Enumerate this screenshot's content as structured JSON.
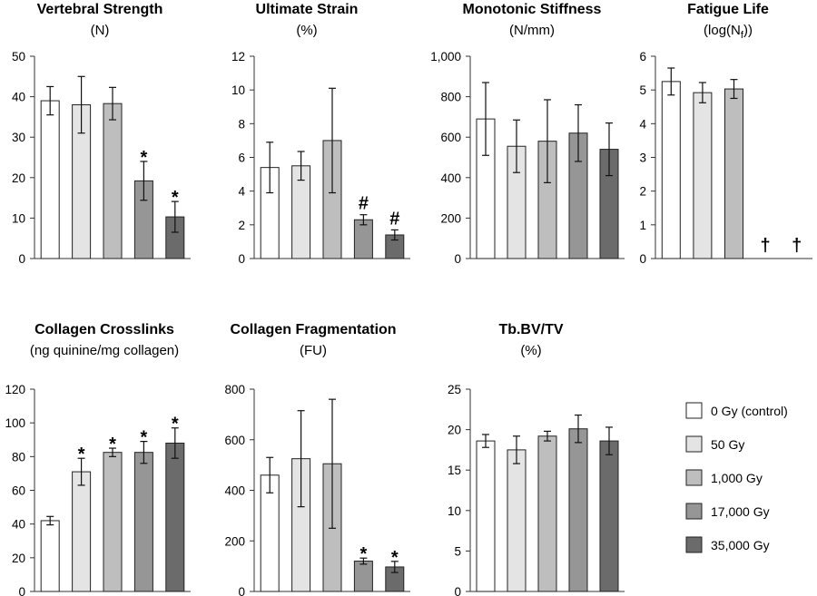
{
  "legend": {
    "items": [
      {
        "label": "0 Gy (control)",
        "color": "#ffffff"
      },
      {
        "label": "50 Gy",
        "color": "#e4e4e4"
      },
      {
        "label": "1,000 Gy",
        "color": "#bebebe"
      },
      {
        "label": "17,000 Gy",
        "color": "#969696"
      },
      {
        "label": "35,000 Gy",
        "color": "#6b6b6b"
      }
    ]
  },
  "chart_data": [
    {
      "type": "bar",
      "title": "Vertebral Strength",
      "unit": "(N)",
      "ylim": [
        0,
        50
      ],
      "yticks": [
        "0",
        "10",
        "20",
        "30",
        "40",
        "50"
      ],
      "categories": [
        "0 Gy (control)",
        "50 Gy",
        "1,000 Gy",
        "17,000 Gy",
        "35,000 Gy"
      ],
      "values": [
        39,
        38,
        38.3,
        19.2,
        10.3
      ],
      "errors": [
        3.5,
        7,
        4,
        4.8,
        3.8
      ],
      "marks": [
        "",
        "",
        "",
        "*",
        "*"
      ]
    },
    {
      "type": "bar",
      "title": "Ultimate Strain",
      "unit": "(%)",
      "ylim": [
        0,
        12
      ],
      "yticks": [
        "0",
        "2",
        "4",
        "6",
        "8",
        "10",
        "12"
      ],
      "categories": [
        "0 Gy (control)",
        "50 Gy",
        "1,000 Gy",
        "17,000 Gy",
        "35,000 Gy"
      ],
      "values": [
        5.4,
        5.5,
        7.0,
        2.3,
        1.4
      ],
      "errors": [
        1.5,
        0.85,
        3.1,
        0.3,
        0.3
      ],
      "marks": [
        "",
        "",
        "",
        "#",
        "#"
      ]
    },
    {
      "type": "bar",
      "title": "Monotonic Stiffness",
      "unit": "(N/mm)",
      "ylim": [
        0,
        1000
      ],
      "yticks": [
        "0",
        "200",
        "400",
        "600",
        "800",
        "1,000"
      ],
      "categories": [
        "0 Gy (control)",
        "50 Gy",
        "1,000 Gy",
        "17,000 Gy",
        "35,000 Gy"
      ],
      "values": [
        690,
        555,
        580,
        620,
        540
      ],
      "errors": [
        180,
        130,
        205,
        140,
        130
      ],
      "marks": [
        "",
        "",
        "",
        "",
        ""
      ]
    },
    {
      "type": "bar",
      "title": "Fatigue Life",
      "unit": "(log(N",
      "unit_sub": "f",
      "unit_end": "))",
      "ylim": [
        0,
        6
      ],
      "yticks": [
        "0",
        "1",
        "2",
        "3",
        "4",
        "5",
        "6"
      ],
      "categories": [
        "0 Gy (control)",
        "50 Gy",
        "1,000 Gy",
        "17,000 Gy",
        "35,000 Gy"
      ],
      "values": [
        5.25,
        4.92,
        5.03,
        null,
        null
      ],
      "errors": [
        0.4,
        0.3,
        0.28,
        null,
        null
      ],
      "marks": [
        "",
        "",
        "",
        "†",
        "†"
      ]
    },
    {
      "type": "bar",
      "title": "Collagen Crosslinks",
      "unit": "(ng quinine/mg collagen)",
      "ylim": [
        0,
        120
      ],
      "yticks": [
        "0",
        "20",
        "40",
        "60",
        "80",
        "100",
        "120"
      ],
      "categories": [
        "0 Gy (control)",
        "50 Gy",
        "1,000 Gy",
        "17,000 Gy",
        "35,000 Gy"
      ],
      "values": [
        42,
        71,
        82.5,
        82.5,
        88
      ],
      "errors": [
        2.5,
        8,
        2.5,
        6.5,
        9
      ],
      "marks": [
        "",
        "*",
        "*",
        "*",
        "*"
      ]
    },
    {
      "type": "bar",
      "title": "Collagen Fragmentation",
      "unit": "(FU)",
      "ylim": [
        0,
        800
      ],
      "yticks": [
        "0",
        "200",
        "400",
        "600",
        "800"
      ],
      "categories": [
        "0 Gy (control)",
        "50 Gy",
        "1,000 Gy",
        "17,000 Gy",
        "35,000 Gy"
      ],
      "values": [
        460,
        525,
        505,
        120,
        97
      ],
      "errors": [
        70,
        190,
        255,
        12,
        22
      ],
      "marks": [
        "",
        "",
        "",
        "*",
        "*"
      ]
    },
    {
      "type": "bar",
      "title": "Tb.BV/TV",
      "unit": "(%)",
      "ylim": [
        0,
        25
      ],
      "yticks": [
        "0",
        "5",
        "10",
        "15",
        "20",
        "25"
      ],
      "categories": [
        "0 Gy (control)",
        "50 Gy",
        "1,000 Gy",
        "17,000 Gy",
        "35,000 Gy"
      ],
      "values": [
        18.6,
        17.5,
        19.2,
        20.1,
        18.6
      ],
      "errors": [
        0.8,
        1.7,
        0.6,
        1.7,
        1.7
      ],
      "marks": [
        "",
        "",
        "",
        "",
        ""
      ]
    }
  ]
}
